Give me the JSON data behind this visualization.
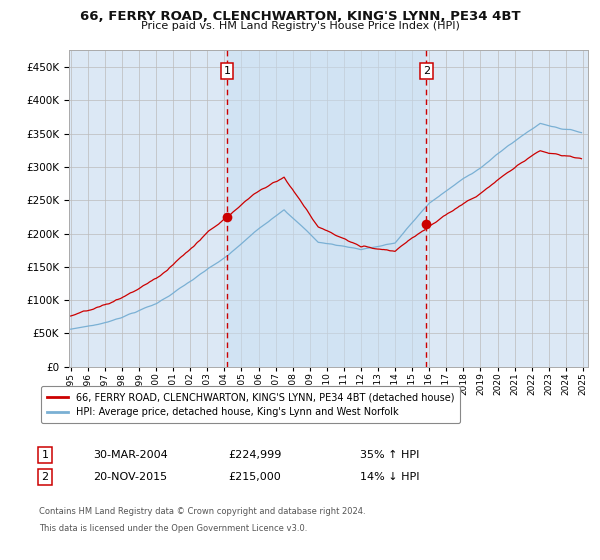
{
  "title": "66, FERRY ROAD, CLENCHWARTON, KING'S LYNN, PE34 4BT",
  "subtitle": "Price paid vs. HM Land Registry's House Price Index (HPI)",
  "legend_line1": "66, FERRY ROAD, CLENCHWARTON, KING'S LYNN, PE34 4BT (detached house)",
  "legend_line2": "HPI: Average price, detached house, King's Lynn and West Norfolk",
  "sale1_label": "1",
  "sale1_date": "30-MAR-2004",
  "sale1_price": 224999,
  "sale1_pct": "35% ↑ HPI",
  "sale2_label": "2",
  "sale2_date": "20-NOV-2015",
  "sale2_price": 215000,
  "sale2_pct": "14% ↓ HPI",
  "footnote1": "Contains HM Land Registry data © Crown copyright and database right 2024.",
  "footnote2": "This data is licensed under the Open Government Licence v3.0.",
  "ylim_min": 0,
  "ylim_max": 475000,
  "yticks": [
    0,
    50000,
    100000,
    150000,
    200000,
    250000,
    300000,
    350000,
    400000,
    450000
  ],
  "background_color": "#ffffff",
  "plot_bg_color": "#dce8f5",
  "shade_color": "#dce8f5",
  "grid_color": "#bbbbbb",
  "hpi_color": "#7ab0d4",
  "price_color": "#cc0000",
  "sale1_year": 2004,
  "sale1_month": 3,
  "sale2_year": 2015,
  "sale2_month": 11,
  "start_year": 1995,
  "end_year": 2025
}
